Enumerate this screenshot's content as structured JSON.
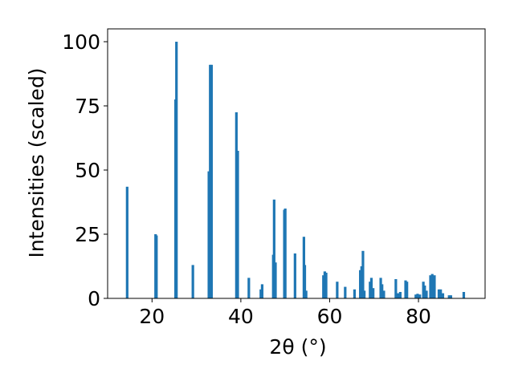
{
  "chart_data": {
    "type": "bar",
    "title": "",
    "xlabel": "2θ (°)",
    "ylabel": "Intensities (scaled)",
    "xlim": [
      10,
      95
    ],
    "ylim": [
      0,
      105
    ],
    "xticks": [
      20,
      40,
      60,
      80
    ],
    "yticks": [
      0,
      25,
      50,
      75,
      100
    ],
    "grid": false,
    "bar_color": "#1f77b4",
    "series": [
      {
        "x": [
          14.4,
          20.8,
          21.0,
          25.3,
          25.5,
          29.2,
          32.8,
          33.1,
          33.4,
          39.0,
          39.3,
          41.8,
          44.5,
          44.8,
          47.3,
          47.5,
          47.8,
          49.8,
          50.0,
          52.2,
          54.2,
          54.4,
          54.7,
          58.6,
          58.9,
          59.2,
          61.7,
          63.5,
          65.6,
          66.9,
          67.2,
          67.5,
          67.8,
          69.1,
          69.4,
          69.8,
          71.5,
          71.8,
          72.2,
          74.9,
          75.4,
          75.9,
          77.1,
          77.4,
          79.4,
          79.8,
          80.3,
          81.1,
          81.4,
          81.8,
          82.7,
          83.1,
          83.6,
          84.6,
          85.0,
          85.5,
          86.9,
          87.3,
          90.2
        ],
        "y": [
          43.5,
          25,
          24.5,
          77.5,
          100,
          13,
          49.5,
          91,
          91,
          72.5,
          57.5,
          8,
          3.5,
          5.5,
          17,
          38.5,
          14,
          34.5,
          35,
          17.5,
          24,
          13,
          3,
          9,
          10.5,
          10,
          6.5,
          4.5,
          3.5,
          11,
          12.5,
          18.5,
          3,
          6.5,
          8,
          4,
          8,
          5.5,
          3,
          7.5,
          2,
          2.5,
          7,
          6.5,
          1.5,
          1.8,
          1.5,
          6.5,
          5,
          3,
          9,
          9.5,
          9,
          3.5,
          3.5,
          2,
          1.2,
          1.2,
          2.5
        ]
      }
    ]
  }
}
